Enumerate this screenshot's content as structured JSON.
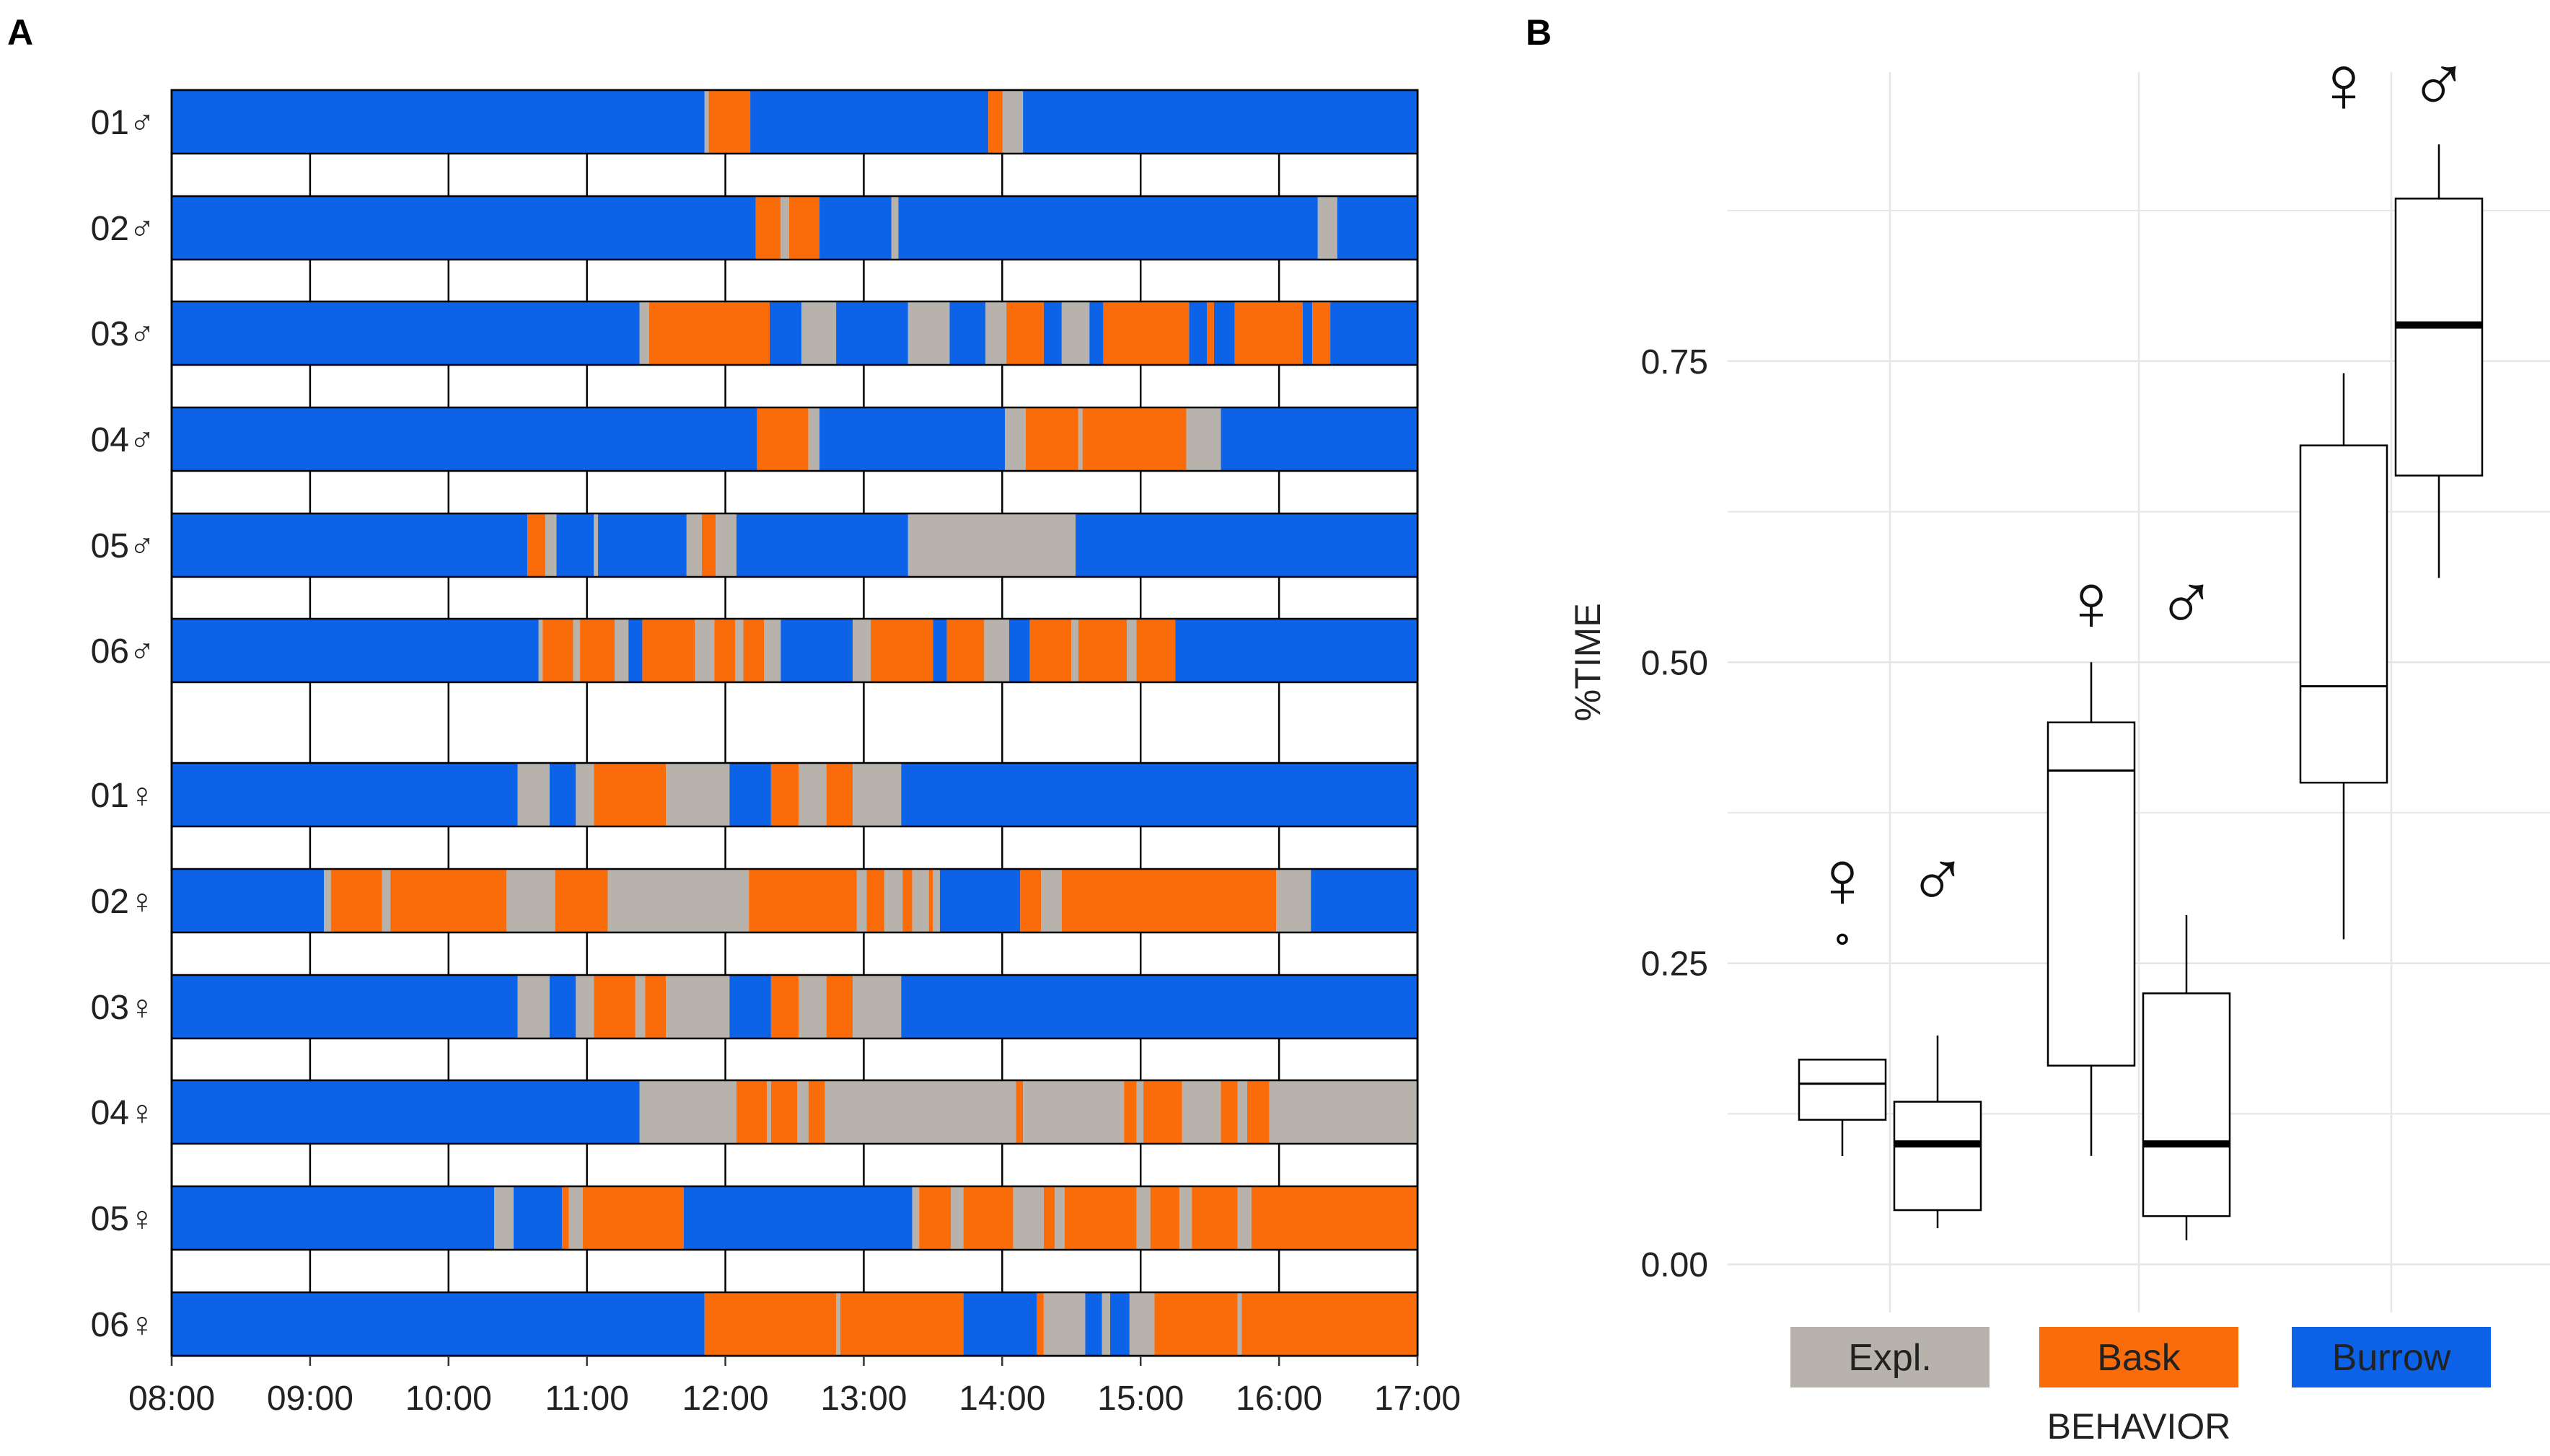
{
  "colors": {
    "explore": "#b8b2ad",
    "bask": "#fa6c0a",
    "burrow": "#0d63e8",
    "grid": "#e6e6e6"
  },
  "panel_a": {
    "letter": "A",
    "time_ticks": [
      "08:00",
      "09:00",
      "10:00",
      "11:00",
      "12:00",
      "13:00",
      "14:00",
      "15:00",
      "16:00",
      "17:00"
    ],
    "rows": [
      {
        "label": "01♂",
        "segments": [
          [
            "B",
            8.0,
            11.85
          ],
          [
            "X",
            11.85,
            11.88
          ],
          [
            "K",
            11.88,
            12.18
          ],
          [
            "B",
            12.18,
            13.9
          ],
          [
            "K",
            13.9,
            14.0
          ],
          [
            "X",
            14.0,
            14.15
          ],
          [
            "B",
            14.15,
            17.0
          ]
        ]
      },
      {
        "label": "02♂",
        "segments": [
          [
            "B",
            8.0,
            12.22
          ],
          [
            "K",
            12.22,
            12.4
          ],
          [
            "X",
            12.4,
            12.46
          ],
          [
            "K",
            12.46,
            12.68
          ],
          [
            "B",
            12.68,
            13.2
          ],
          [
            "X",
            13.2,
            13.25
          ],
          [
            "B",
            13.25,
            16.28
          ],
          [
            "X",
            16.28,
            16.42
          ],
          [
            "B",
            16.42,
            17.0
          ]
        ]
      },
      {
        "label": "03♂",
        "segments": [
          [
            "B",
            8.0,
            11.38
          ],
          [
            "X",
            11.38,
            11.45
          ],
          [
            "K",
            11.45,
            12.32
          ],
          [
            "B",
            12.32,
            12.55
          ],
          [
            "X",
            12.55,
            12.8
          ],
          [
            "B",
            12.8,
            13.32
          ],
          [
            "X",
            13.32,
            13.62
          ],
          [
            "B",
            13.62,
            13.88
          ],
          [
            "X",
            13.88,
            14.03
          ],
          [
            "K",
            14.03,
            14.3
          ],
          [
            "B",
            14.3,
            14.43
          ],
          [
            "X",
            14.43,
            14.63
          ],
          [
            "B",
            14.63,
            14.73
          ],
          [
            "K",
            14.73,
            15.35
          ],
          [
            "B",
            15.35,
            15.48
          ],
          [
            "K",
            15.48,
            15.53
          ],
          [
            "B",
            15.53,
            15.68
          ],
          [
            "K",
            15.68,
            16.17
          ],
          [
            "B",
            16.17,
            16.24
          ],
          [
            "K",
            16.24,
            16.37
          ],
          [
            "B",
            16.37,
            17.0
          ]
        ]
      },
      {
        "label": "04♂",
        "segments": [
          [
            "B",
            8.0,
            12.23
          ],
          [
            "K",
            12.23,
            12.6
          ],
          [
            "X",
            12.6,
            12.68
          ],
          [
            "B",
            12.68,
            14.02
          ],
          [
            "X",
            14.02,
            14.17
          ],
          [
            "K",
            14.17,
            14.55
          ],
          [
            "X",
            14.55,
            14.58
          ],
          [
            "K",
            14.58,
            15.33
          ],
          [
            "X",
            15.33,
            15.58
          ],
          [
            "B",
            15.58,
            17.0
          ]
        ]
      },
      {
        "label": "05♂",
        "segments": [
          [
            "B",
            8.0,
            10.57
          ],
          [
            "K",
            10.57,
            10.7
          ],
          [
            "X",
            10.7,
            10.78
          ],
          [
            "B",
            10.78,
            11.05
          ],
          [
            "X",
            11.05,
            11.08
          ],
          [
            "B",
            11.08,
            11.72
          ],
          [
            "X",
            11.72,
            11.83
          ],
          [
            "K",
            11.83,
            11.93
          ],
          [
            "X",
            11.93,
            12.08
          ],
          [
            "B",
            12.08,
            13.32
          ],
          [
            "X",
            13.32,
            14.53
          ],
          [
            "B",
            14.53,
            17.0
          ]
        ]
      },
      {
        "label": "06♂",
        "segments": [
          [
            "B",
            8.0,
            10.65
          ],
          [
            "X",
            10.65,
            10.68
          ],
          [
            "K",
            10.68,
            10.9
          ],
          [
            "X",
            10.9,
            10.95
          ],
          [
            "K",
            10.95,
            11.2
          ],
          [
            "X",
            11.2,
            11.3
          ],
          [
            "B",
            11.3,
            11.4
          ],
          [
            "K",
            11.4,
            11.78
          ],
          [
            "X",
            11.78,
            11.92
          ],
          [
            "K",
            11.92,
            12.07
          ],
          [
            "X",
            12.07,
            12.13
          ],
          [
            "K",
            12.13,
            12.28
          ],
          [
            "X",
            12.28,
            12.4
          ],
          [
            "B",
            12.4,
            12.92
          ],
          [
            "X",
            12.92,
            13.05
          ],
          [
            "K",
            13.05,
            13.5
          ],
          [
            "B",
            13.5,
            13.6
          ],
          [
            "K",
            13.6,
            13.87
          ],
          [
            "X",
            13.87,
            14.05
          ],
          [
            "B",
            14.05,
            14.2
          ],
          [
            "K",
            14.2,
            14.5
          ],
          [
            "X",
            14.5,
            14.55
          ],
          [
            "K",
            14.55,
            14.9
          ],
          [
            "X",
            14.9,
            14.97
          ],
          [
            "K",
            14.97,
            15.25
          ],
          [
            "B",
            15.25,
            17.0
          ]
        ]
      },
      {
        "label": "01♀",
        "segments": [
          [
            "B",
            8.0,
            10.5
          ],
          [
            "X",
            10.5,
            10.73
          ],
          [
            "B",
            10.73,
            10.92
          ],
          [
            "X",
            10.92,
            11.05
          ],
          [
            "K",
            11.05,
            11.57
          ],
          [
            "X",
            11.57,
            12.03
          ],
          [
            "B",
            12.03,
            12.33
          ],
          [
            "K",
            12.33,
            12.53
          ],
          [
            "X",
            12.53,
            12.73
          ],
          [
            "K",
            12.73,
            12.92
          ],
          [
            "X",
            12.92,
            13.27
          ],
          [
            "B",
            13.27,
            17.0
          ]
        ]
      },
      {
        "label": "02♀",
        "segments": [
          [
            "B",
            8.0,
            9.1
          ],
          [
            "X",
            9.1,
            9.15
          ],
          [
            "K",
            9.15,
            9.52
          ],
          [
            "X",
            9.52,
            9.58
          ],
          [
            "K",
            9.58,
            10.42
          ],
          [
            "X",
            10.42,
            10.77
          ],
          [
            "K",
            10.77,
            11.15
          ],
          [
            "X",
            11.15,
            12.17
          ],
          [
            "K",
            12.17,
            12.95
          ],
          [
            "X",
            12.95,
            13.02
          ],
          [
            "K",
            13.02,
            13.15
          ],
          [
            "X",
            13.15,
            13.28
          ],
          [
            "K",
            13.28,
            13.35
          ],
          [
            "X",
            13.35,
            13.47
          ],
          [
            "K",
            13.47,
            13.5
          ],
          [
            "X",
            13.5,
            13.55
          ],
          [
            "B",
            13.55,
            14.13
          ],
          [
            "K",
            14.13,
            14.28
          ],
          [
            "X",
            14.28,
            14.43
          ],
          [
            "K",
            14.43,
            15.98
          ],
          [
            "X",
            15.98,
            16.23
          ],
          [
            "B",
            16.23,
            17.0
          ]
        ]
      },
      {
        "label": "03♀",
        "segments": [
          [
            "B",
            8.0,
            10.5
          ],
          [
            "X",
            10.5,
            10.73
          ],
          [
            "B",
            10.73,
            10.92
          ],
          [
            "X",
            10.92,
            11.05
          ],
          [
            "K",
            11.05,
            11.35
          ],
          [
            "X",
            11.35,
            11.42
          ],
          [
            "K",
            11.42,
            11.57
          ],
          [
            "X",
            11.57,
            12.03
          ],
          [
            "B",
            12.03,
            12.33
          ],
          [
            "K",
            12.33,
            12.53
          ],
          [
            "X",
            12.53,
            12.73
          ],
          [
            "K",
            12.73,
            12.92
          ],
          [
            "X",
            12.92,
            13.27
          ],
          [
            "B",
            13.27,
            17.0
          ]
        ]
      },
      {
        "label": "04♀",
        "segments": [
          [
            "B",
            8.0,
            11.38
          ],
          [
            "X",
            11.38,
            12.08
          ],
          [
            "K",
            12.08,
            12.3
          ],
          [
            "X",
            12.3,
            12.33
          ],
          [
            "K",
            12.33,
            12.52
          ],
          [
            "X",
            12.52,
            12.6
          ],
          [
            "K",
            12.6,
            12.72
          ],
          [
            "X",
            12.72,
            14.1
          ],
          [
            "K",
            14.1,
            14.15
          ],
          [
            "X",
            14.15,
            14.88
          ],
          [
            "K",
            14.88,
            14.97
          ],
          [
            "X",
            14.97,
            15.02
          ],
          [
            "K",
            15.02,
            15.3
          ],
          [
            "X",
            15.3,
            15.58
          ],
          [
            "K",
            15.58,
            15.7
          ],
          [
            "X",
            15.7,
            15.77
          ],
          [
            "K",
            15.77,
            15.93
          ],
          [
            "X",
            15.93,
            17.0
          ]
        ]
      },
      {
        "label": "05♀",
        "segments": [
          [
            "B",
            8.0,
            10.33
          ],
          [
            "X",
            10.33,
            10.47
          ],
          [
            "B",
            10.47,
            10.82
          ],
          [
            "K",
            10.82,
            10.87
          ],
          [
            "X",
            10.87,
            10.97
          ],
          [
            "K",
            10.97,
            11.7
          ],
          [
            "B",
            11.7,
            13.35
          ],
          [
            "X",
            13.35,
            13.4
          ],
          [
            "K",
            13.4,
            13.63
          ],
          [
            "X",
            13.63,
            13.72
          ],
          [
            "K",
            13.72,
            14.08
          ],
          [
            "X",
            14.08,
            14.3
          ],
          [
            "K",
            14.3,
            14.38
          ],
          [
            "X",
            14.38,
            14.45
          ],
          [
            "K",
            14.45,
            14.97
          ],
          [
            "X",
            14.97,
            15.07
          ],
          [
            "K",
            15.07,
            15.28
          ],
          [
            "X",
            15.28,
            15.37
          ],
          [
            "K",
            15.37,
            15.7
          ],
          [
            "X",
            15.7,
            15.8
          ],
          [
            "K",
            15.8,
            17.0
          ]
        ]
      },
      {
        "label": "06♀",
        "segments": [
          [
            "B",
            8.0,
            11.85
          ],
          [
            "K",
            11.85,
            12.8
          ],
          [
            "X",
            12.8,
            12.83
          ],
          [
            "K",
            12.83,
            13.72
          ],
          [
            "B",
            13.72,
            14.25
          ],
          [
            "K",
            14.25,
            14.3
          ],
          [
            "X",
            14.3,
            14.6
          ],
          [
            "B",
            14.6,
            14.72
          ],
          [
            "X",
            14.72,
            14.78
          ],
          [
            "B",
            14.78,
            14.92
          ],
          [
            "X",
            14.92,
            15.1
          ],
          [
            "K",
            15.1,
            15.7
          ],
          [
            "X",
            15.7,
            15.73
          ],
          [
            "K",
            15.73,
            17.0
          ]
        ]
      }
    ]
  },
  "chart_data": {
    "type": "box",
    "title": "",
    "xlabel": "BEHAVIOR",
    "ylabel": "%TIME",
    "ylim": [
      -0.04,
      0.99
    ],
    "yticks": [
      "0.00",
      "0.25",
      "0.50",
      "0.75"
    ],
    "categories": [
      "Expl.",
      "Bask",
      "Burrow"
    ],
    "series": [
      {
        "name": "♀",
        "boxes": [
          {
            "category": "Expl.",
            "whislo": 0.09,
            "q1": 0.12,
            "median": 0.15,
            "q3": 0.17,
            "whishi": 0.17,
            "outliers": [
              0.27
            ],
            "thick_median": false
          },
          {
            "category": "Bask",
            "whislo": 0.09,
            "q1": 0.165,
            "median": 0.41,
            "q3": 0.45,
            "whishi": 0.5,
            "outliers": [],
            "thick_median": false
          },
          {
            "category": "Burrow",
            "whislo": 0.27,
            "q1": 0.4,
            "median": 0.48,
            "q3": 0.68,
            "whishi": 0.74,
            "outliers": [],
            "thick_median": false
          }
        ]
      },
      {
        "name": "♂",
        "boxes": [
          {
            "category": "Expl.",
            "whislo": 0.03,
            "q1": 0.045,
            "median": 0.1,
            "q3": 0.135,
            "whishi": 0.19,
            "outliers": [],
            "thick_median": true
          },
          {
            "category": "Bask",
            "whislo": 0.02,
            "q1": 0.04,
            "median": 0.1,
            "q3": 0.225,
            "whishi": 0.29,
            "outliers": [],
            "thick_median": true
          },
          {
            "category": "Burrow",
            "whislo": 0.57,
            "q1": 0.655,
            "median": 0.78,
            "q3": 0.885,
            "whishi": 0.93,
            "outliers": [],
            "thick_median": true
          }
        ]
      }
    ],
    "legend": [
      {
        "label": "Expl.",
        "color": "#b8b2ad"
      },
      {
        "label": "Bask",
        "color": "#fa6c0a"
      },
      {
        "label": "Burrow",
        "color": "#0d63e8"
      }
    ],
    "symbols": {
      "female": "♀",
      "male": "♂"
    }
  },
  "panel_b": {
    "letter": "B"
  }
}
